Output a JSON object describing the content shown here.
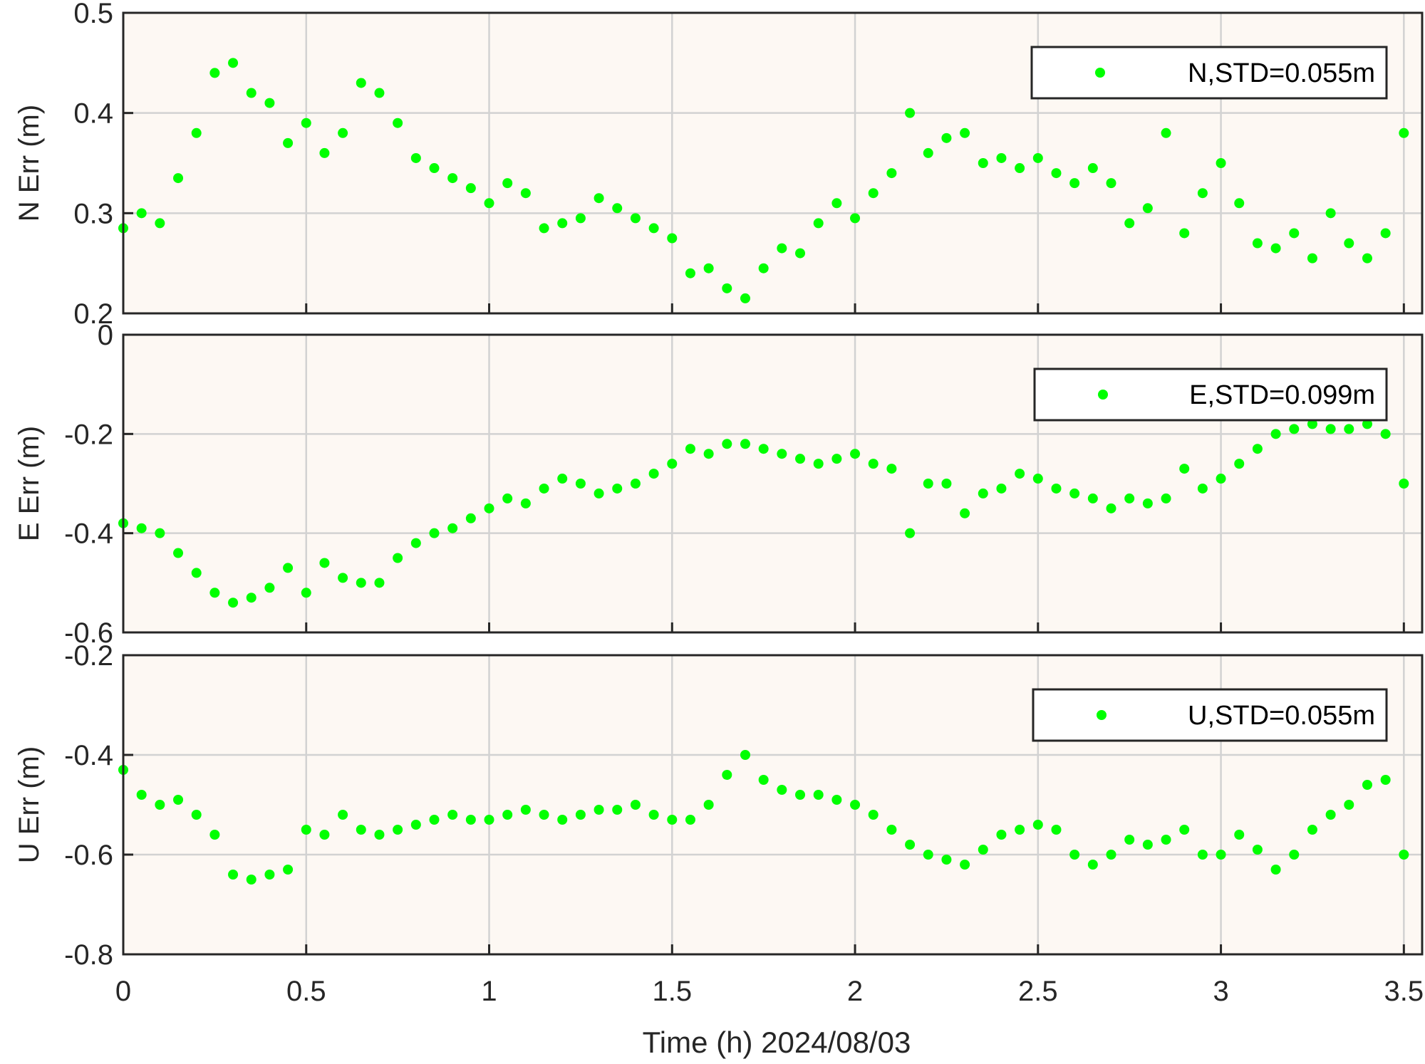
{
  "figure": {
    "xlabel": "Time (h)  2024/08/03",
    "colors": {
      "background": "#fdf8f3",
      "points": "#00ff00",
      "grid": "#d2d2d2",
      "axes": "#262626"
    }
  },
  "chart_data": [
    {
      "type": "scatter",
      "ylabel": "N Err (m)",
      "legend": "N,STD=0.055m",
      "legend_position": "top-right",
      "grid": true,
      "xlim": [
        0,
        3.55
      ],
      "ylim": [
        0.2,
        0.5
      ],
      "xticks": [
        "0",
        "0.5",
        "1",
        "1.5",
        "2",
        "2.5",
        "3",
        "3.5"
      ],
      "yticks": [
        "0.2",
        "0.3",
        "0.4",
        "0.5"
      ],
      "x": [
        0,
        0.05,
        0.1,
        0.15,
        0.2,
        0.25,
        0.3,
        0.35,
        0.4,
        0.45,
        0.5,
        0.55,
        0.6,
        0.65,
        0.7,
        0.75,
        0.8,
        0.85,
        0.9,
        0.95,
        1.0,
        1.05,
        1.1,
        1.15,
        1.2,
        1.25,
        1.3,
        1.35,
        1.4,
        1.45,
        1.5,
        1.55,
        1.6,
        1.65,
        1.7,
        1.75,
        1.8,
        1.85,
        1.9,
        1.95,
        2.0,
        2.05,
        2.1,
        2.15,
        2.2,
        2.25,
        2.3,
        2.35,
        2.4,
        2.45,
        2.5,
        2.55,
        2.6,
        2.65,
        2.7,
        2.75,
        2.8,
        2.85,
        2.9,
        2.95,
        3.0,
        3.05,
        3.1,
        3.15,
        3.2,
        3.25,
        3.3,
        3.35,
        3.4,
        3.45,
        3.5
      ],
      "y": [
        0.285,
        0.3,
        0.29,
        0.335,
        0.38,
        0.44,
        0.45,
        0.42,
        0.41,
        0.37,
        0.39,
        0.36,
        0.38,
        0.43,
        0.42,
        0.39,
        0.355,
        0.345,
        0.335,
        0.325,
        0.31,
        0.33,
        0.32,
        0.285,
        0.29,
        0.295,
        0.315,
        0.305,
        0.295,
        0.285,
        0.275,
        0.24,
        0.245,
        0.225,
        0.215,
        0.245,
        0.265,
        0.26,
        0.29,
        0.31,
        0.295,
        0.32,
        0.34,
        0.4,
        0.36,
        0.375,
        0.38,
        0.35,
        0.355,
        0.345,
        0.355,
        0.34,
        0.33,
        0.345,
        0.33,
        0.29,
        0.305,
        0.38,
        0.28,
        0.32,
        0.35,
        0.31,
        0.27,
        0.265,
        0.28,
        0.255,
        0.3,
        0.27,
        0.255,
        0.28,
        0.38
      ]
    },
    {
      "type": "scatter",
      "ylabel": "E Err (m)",
      "legend": "E,STD=0.099m",
      "legend_position": "top-right",
      "grid": true,
      "xlim": [
        0,
        3.55
      ],
      "ylim": [
        -0.6,
        0
      ],
      "xticks": [
        "0",
        "0.5",
        "1",
        "1.5",
        "2",
        "2.5",
        "3",
        "3.5"
      ],
      "yticks": [
        "-0.6",
        "-0.4",
        "-0.2",
        "0"
      ],
      "x": [
        0,
        0.05,
        0.1,
        0.15,
        0.2,
        0.25,
        0.3,
        0.35,
        0.4,
        0.45,
        0.5,
        0.55,
        0.6,
        0.65,
        0.7,
        0.75,
        0.8,
        0.85,
        0.9,
        0.95,
        1.0,
        1.05,
        1.1,
        1.15,
        1.2,
        1.25,
        1.3,
        1.35,
        1.4,
        1.45,
        1.5,
        1.55,
        1.6,
        1.65,
        1.7,
        1.75,
        1.8,
        1.85,
        1.9,
        1.95,
        2.0,
        2.05,
        2.1,
        2.15,
        2.2,
        2.25,
        2.3,
        2.35,
        2.4,
        2.45,
        2.5,
        2.55,
        2.6,
        2.65,
        2.7,
        2.75,
        2.8,
        2.85,
        2.9,
        2.95,
        3.0,
        3.05,
        3.1,
        3.15,
        3.2,
        3.25,
        3.3,
        3.35,
        3.4,
        3.45,
        3.5
      ],
      "y": [
        -0.38,
        -0.39,
        -0.4,
        -0.44,
        -0.48,
        -0.52,
        -0.54,
        -0.53,
        -0.51,
        -0.47,
        -0.52,
        -0.46,
        -0.49,
        -0.5,
        -0.5,
        -0.45,
        -0.42,
        -0.4,
        -0.39,
        -0.37,
        -0.35,
        -0.33,
        -0.34,
        -0.31,
        -0.29,
        -0.3,
        -0.32,
        -0.31,
        -0.3,
        -0.28,
        -0.26,
        -0.23,
        -0.24,
        -0.22,
        -0.22,
        -0.23,
        -0.24,
        -0.25,
        -0.26,
        -0.25,
        -0.24,
        -0.26,
        -0.27,
        -0.4,
        -0.3,
        -0.3,
        -0.36,
        -0.32,
        -0.31,
        -0.28,
        -0.29,
        -0.31,
        -0.32,
        -0.33,
        -0.35,
        -0.33,
        -0.34,
        -0.33,
        -0.27,
        -0.31,
        -0.29,
        -0.26,
        -0.23,
        -0.2,
        -0.19,
        -0.18,
        -0.19,
        -0.19,
        -0.18,
        -0.2,
        -0.3
      ]
    },
    {
      "type": "scatter",
      "ylabel": "U Err (m)",
      "legend": "U,STD=0.055m",
      "legend_position": "top-right",
      "grid": true,
      "xlim": [
        0,
        3.55
      ],
      "ylim": [
        -0.8,
        -0.2
      ],
      "xticks": [
        "0",
        "0.5",
        "1",
        "1.5",
        "2",
        "2.5",
        "3",
        "3.5"
      ],
      "yticks": [
        "-0.8",
        "-0.6",
        "-0.4",
        "-0.2"
      ],
      "x": [
        0,
        0.05,
        0.1,
        0.15,
        0.2,
        0.25,
        0.3,
        0.35,
        0.4,
        0.45,
        0.5,
        0.55,
        0.6,
        0.65,
        0.7,
        0.75,
        0.8,
        0.85,
        0.9,
        0.95,
        1.0,
        1.05,
        1.1,
        1.15,
        1.2,
        1.25,
        1.3,
        1.35,
        1.4,
        1.45,
        1.5,
        1.55,
        1.6,
        1.65,
        1.7,
        1.75,
        1.8,
        1.85,
        1.9,
        1.95,
        2.0,
        2.05,
        2.1,
        2.15,
        2.2,
        2.25,
        2.3,
        2.35,
        2.4,
        2.45,
        2.5,
        2.55,
        2.6,
        2.65,
        2.7,
        2.75,
        2.8,
        2.85,
        2.9,
        2.95,
        3.0,
        3.05,
        3.1,
        3.15,
        3.2,
        3.25,
        3.3,
        3.35,
        3.4,
        3.45,
        3.5
      ],
      "y": [
        -0.43,
        -0.48,
        -0.5,
        -0.49,
        -0.52,
        -0.56,
        -0.64,
        -0.65,
        -0.64,
        -0.63,
        -0.55,
        -0.56,
        -0.52,
        -0.55,
        -0.56,
        -0.55,
        -0.54,
        -0.53,
        -0.52,
        -0.53,
        -0.53,
        -0.52,
        -0.51,
        -0.52,
        -0.53,
        -0.52,
        -0.51,
        -0.51,
        -0.5,
        -0.52,
        -0.53,
        -0.53,
        -0.5,
        -0.44,
        -0.4,
        -0.45,
        -0.47,
        -0.48,
        -0.48,
        -0.49,
        -0.5,
        -0.52,
        -0.55,
        -0.58,
        -0.6,
        -0.61,
        -0.62,
        -0.59,
        -0.56,
        -0.55,
        -0.54,
        -0.55,
        -0.6,
        -0.62,
        -0.6,
        -0.57,
        -0.58,
        -0.57,
        -0.55,
        -0.6,
        -0.6,
        -0.56,
        -0.59,
        -0.63,
        -0.6,
        -0.55,
        -0.52,
        -0.5,
        -0.46,
        -0.45,
        -0.6
      ]
    }
  ]
}
